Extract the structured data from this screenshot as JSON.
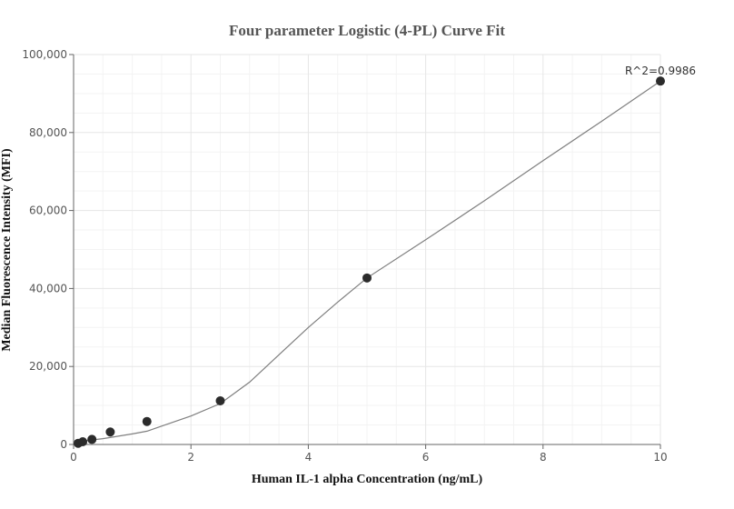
{
  "chart_data": {
    "type": "scatter",
    "title": "Four parameter Logistic (4-PL) Curve Fit",
    "xlabel": "Human IL-1 alpha Concentration (ng/mL)",
    "ylabel": "Median Fluorescence Intensity (MFI)",
    "xlim": [
      0,
      10
    ],
    "ylim": [
      0,
      100000
    ],
    "x_ticks": [
      0,
      2,
      4,
      6,
      8,
      10
    ],
    "x_tick_labels": [
      "0",
      "2",
      "4",
      "6",
      "8",
      "10"
    ],
    "y_ticks": [
      0,
      20000,
      40000,
      60000,
      80000,
      100000
    ],
    "y_tick_labels": [
      "0",
      "20,000",
      "40,000",
      "60,000",
      "80,000",
      "100,000"
    ],
    "grid": true,
    "annotation": "R^2=0.9986",
    "series": [
      {
        "type": "scatter",
        "color": "#2b2b2b",
        "points": [
          {
            "x": 0.078,
            "y": 300
          },
          {
            "x": 0.156,
            "y": 700
          },
          {
            "x": 0.3125,
            "y": 1300
          },
          {
            "x": 0.625,
            "y": 3200
          },
          {
            "x": 1.25,
            "y": 5900
          },
          {
            "x": 2.5,
            "y": 11200
          },
          {
            "x": 5,
            "y": 42700
          },
          {
            "x": 10,
            "y": 93200
          }
        ]
      },
      {
        "type": "line",
        "color": "#7f7f7f",
        "points": [
          {
            "x": 0,
            "y": 600
          },
          {
            "x": 0.5,
            "y": 1500
          },
          {
            "x": 1,
            "y": 2700
          },
          {
            "x": 1.25,
            "y": 3400
          },
          {
            "x": 1.5,
            "y": 4700
          },
          {
            "x": 2,
            "y": 7300
          },
          {
            "x": 2.5,
            "y": 10500
          },
          {
            "x": 3,
            "y": 16000
          },
          {
            "x": 3.5,
            "y": 23000
          },
          {
            "x": 4,
            "y": 30000
          },
          {
            "x": 4.5,
            "y": 36500
          },
          {
            "x": 5,
            "y": 42700
          },
          {
            "x": 6,
            "y": 52500
          },
          {
            "x": 7,
            "y": 62500
          },
          {
            "x": 8,
            "y": 72800
          },
          {
            "x": 9,
            "y": 82900
          },
          {
            "x": 10,
            "y": 93200
          }
        ]
      }
    ]
  }
}
